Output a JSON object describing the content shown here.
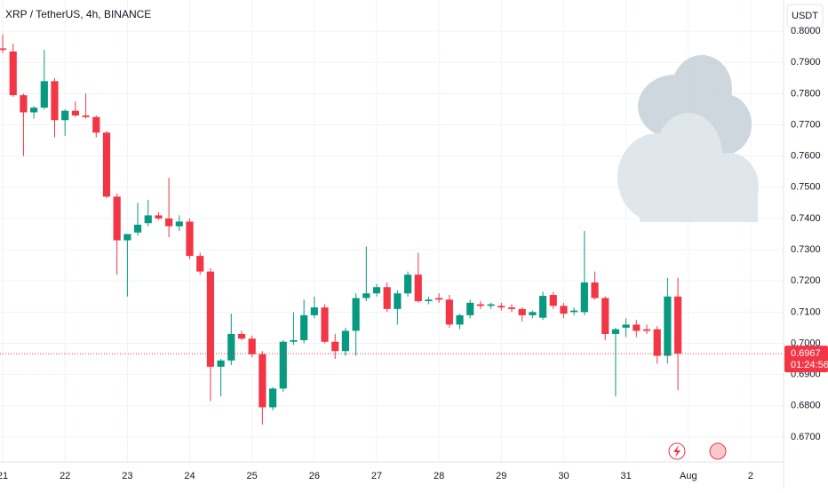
{
  "chart_data": {
    "type": "candlestick",
    "title": "XRP / TetherUS, 4h, BINANCE",
    "currency_button": "USDT",
    "x": [
      0,
      1,
      2,
      3,
      4,
      5,
      6,
      7,
      8,
      9,
      10,
      11,
      12,
      13,
      14,
      15,
      16,
      17,
      18,
      19,
      20,
      21,
      22,
      23,
      24,
      25,
      26,
      27,
      28,
      29,
      30,
      31,
      32,
      33,
      34,
      35,
      36,
      37,
      38,
      39,
      40,
      41,
      42,
      43,
      44,
      45,
      46,
      47,
      48,
      49,
      50,
      51,
      52,
      53,
      54,
      55,
      56,
      57,
      58,
      59,
      60,
      61,
      62,
      63,
      64,
      65
    ],
    "open": [
      0.7945,
      0.7935,
      0.7795,
      0.774,
      0.7755,
      0.784,
      0.7715,
      0.7745,
      0.773,
      0.7725,
      0.7675,
      0.747,
      0.733,
      0.7355,
      0.7385,
      0.741,
      0.74,
      0.7375,
      0.739,
      0.728,
      0.723,
      0.6925,
      0.6945,
      0.703,
      0.7015,
      0.6965,
      0.6795,
      0.6855,
      0.7005,
      0.701,
      0.709,
      0.7115,
      0.7005,
      0.6975,
      0.704,
      0.7145,
      0.716,
      0.718,
      0.711,
      0.716,
      0.722,
      0.7135,
      0.7145,
      0.714,
      0.706,
      0.709,
      0.7125,
      0.712,
      0.712,
      0.7115,
      0.711,
      0.709,
      0.7082,
      0.7155,
      0.712,
      0.71,
      0.71,
      0.7195,
      0.7145,
      0.703,
      0.705,
      0.706,
      0.7045,
      0.7045,
      0.696,
      0.715
    ],
    "high": [
      0.799,
      0.796,
      0.78,
      0.776,
      0.794,
      0.785,
      0.775,
      0.7775,
      0.78,
      0.773,
      0.768,
      0.748,
      0.7345,
      0.745,
      0.746,
      0.742,
      0.753,
      0.741,
      0.74,
      0.729,
      0.724,
      0.695,
      0.7095,
      0.704,
      0.7025,
      0.6975,
      0.686,
      0.701,
      0.71,
      0.714,
      0.715,
      0.7125,
      0.703,
      0.705,
      0.716,
      0.731,
      0.719,
      0.7195,
      0.717,
      0.723,
      0.729,
      0.715,
      0.716,
      0.7155,
      0.7095,
      0.714,
      0.7135,
      0.713,
      0.713,
      0.7125,
      0.7115,
      0.7105,
      0.7165,
      0.7165,
      0.713,
      0.7115,
      0.736,
      0.723,
      0.715,
      0.705,
      0.708,
      0.7075,
      0.706,
      0.7055,
      0.721,
      0.721
    ],
    "low": [
      0.793,
      0.779,
      0.76,
      0.772,
      0.775,
      0.766,
      0.7665,
      0.7725,
      0.772,
      0.766,
      0.7465,
      0.722,
      0.715,
      0.7345,
      0.7375,
      0.7395,
      0.734,
      0.736,
      0.727,
      0.722,
      0.6815,
      0.683,
      0.693,
      0.701,
      0.6955,
      0.674,
      0.6785,
      0.6845,
      0.6995,
      0.7,
      0.708,
      0.7,
      0.695,
      0.696,
      0.696,
      0.7135,
      0.715,
      0.71,
      0.706,
      0.715,
      0.713,
      0.7125,
      0.713,
      0.705,
      0.7045,
      0.708,
      0.711,
      0.711,
      0.7105,
      0.71,
      0.707,
      0.708,
      0.7075,
      0.711,
      0.708,
      0.709,
      0.709,
      0.714,
      0.701,
      0.683,
      0.702,
      0.702,
      0.703,
      0.6935,
      0.6935,
      0.685
    ],
    "close": [
      0.794,
      0.7795,
      0.774,
      0.7755,
      0.784,
      0.7715,
      0.7745,
      0.773,
      0.7725,
      0.7675,
      0.747,
      0.733,
      0.735,
      0.738,
      0.741,
      0.74,
      0.7375,
      0.739,
      0.728,
      0.723,
      0.6925,
      0.6945,
      0.703,
      0.7015,
      0.6965,
      0.6795,
      0.6855,
      0.7005,
      0.701,
      0.709,
      0.7115,
      0.7005,
      0.6975,
      0.704,
      0.7145,
      0.716,
      0.718,
      0.711,
      0.716,
      0.722,
      0.7135,
      0.714,
      0.714,
      0.706,
      0.709,
      0.713,
      0.712,
      0.7125,
      0.7115,
      0.711,
      0.709,
      0.71,
      0.7152,
      0.712,
      0.7095,
      0.7105,
      0.7195,
      0.7145,
      0.703,
      0.7045,
      0.706,
      0.704,
      0.704,
      0.696,
      0.715,
      0.6967
    ],
    "up_color": "#089981",
    "down_color": "#f23645",
    "xlim": [
      -0.26,
      75.17
    ],
    "xticks": [
      {
        "value": 0,
        "label": "21"
      },
      {
        "value": 6,
        "label": "22"
      },
      {
        "value": 12,
        "label": "23"
      },
      {
        "value": 18,
        "label": "24"
      },
      {
        "value": 24,
        "label": "25"
      },
      {
        "value": 30,
        "label": "26"
      },
      {
        "value": 36,
        "label": "27"
      },
      {
        "value": 42,
        "label": "28"
      },
      {
        "value": 48,
        "label": "29"
      },
      {
        "value": 54,
        "label": "30"
      },
      {
        "value": 60,
        "label": "31"
      },
      {
        "value": 66,
        "label": "Aug"
      },
      {
        "value": 72,
        "label": "2"
      }
    ],
    "ylim": [
      0.662,
      0.81
    ],
    "yticks": [
      {
        "value": 0.67,
        "label": "0.6700"
      },
      {
        "value": 0.68,
        "label": "0.6800"
      },
      {
        "value": 0.69,
        "label": "0.6900"
      },
      {
        "value": 0.7,
        "label": "0.7000"
      },
      {
        "value": 0.71,
        "label": "0.7100"
      },
      {
        "value": 0.72,
        "label": "0.7200"
      },
      {
        "value": 0.73,
        "label": "0.7300"
      },
      {
        "value": 0.74,
        "label": "0.7400"
      },
      {
        "value": 0.75,
        "label": "0.7500"
      },
      {
        "value": 0.76,
        "label": "0.7600"
      },
      {
        "value": 0.77,
        "label": "0.7700"
      },
      {
        "value": 0.78,
        "label": "0.7800"
      },
      {
        "value": 0.79,
        "label": "0.7900"
      },
      {
        "value": 0.8,
        "label": "0.8000"
      }
    ],
    "grid": true,
    "last_price": {
      "value": 0.6967,
      "label": "0.6967",
      "countdown": "01:24:56"
    }
  }
}
